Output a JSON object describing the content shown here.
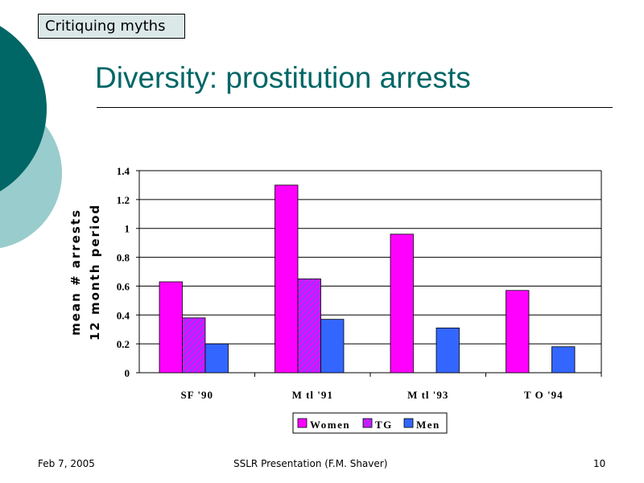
{
  "header": {
    "tag": "Critiquing myths",
    "title": "Diversity: prostitution arrests"
  },
  "footer": {
    "date": "Feb 7, 2005",
    "center": "SSLR Presentation (F.M. Shaver)",
    "page": "10"
  },
  "colors": {
    "women": "#ff00ff",
    "tg": "#9933ff",
    "men": "#3366ff",
    "teal_dark": "#006666",
    "teal_light": "#99cccc"
  },
  "chart_data": {
    "type": "bar",
    "title": "",
    "xlabel": "",
    "ylabel": [
      "mean # arrests",
      "12 month period"
    ],
    "categories": [
      "SF  '90",
      "M tl '91",
      "M tl '93",
      "T O  '94"
    ],
    "series": [
      {
        "name": "Women",
        "values": [
          0.63,
          1.3,
          0.96,
          0.57
        ]
      },
      {
        "name": "TG",
        "values": [
          0.38,
          0.65,
          null,
          null
        ]
      },
      {
        "name": "Men",
        "values": [
          0.2,
          0.37,
          0.31,
          0.18
        ]
      }
    ],
    "ylim": [
      0,
      1.4
    ],
    "yticks": [
      "0",
      "0.2",
      "0.4",
      "0.6",
      "0.8",
      "1",
      "1.2",
      "1.4"
    ],
    "grid": true,
    "legend": "bottom"
  }
}
